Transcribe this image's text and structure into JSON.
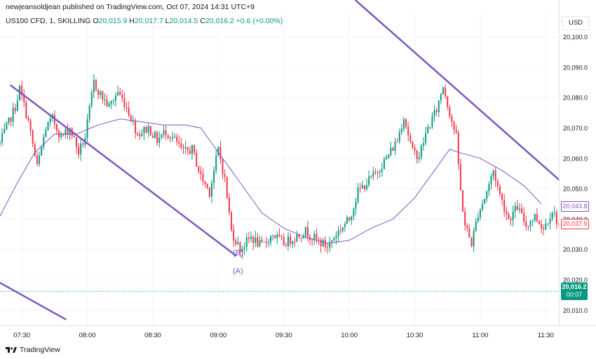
{
  "header": {
    "publisher": "newjeansoldjean published on TradingView.com, Oct 07, 2024 14:31 UTC+9",
    "symbol": "US100 CFD, 1, SKILLING",
    "ohlc": {
      "o_label": "O",
      "o": "20,015.9",
      "h_label": "H",
      "h": "20,017.7",
      "l_label": "L",
      "l": "20,014.5",
      "c_label": "C",
      "c": "20,016.2",
      "change": "+0.6 (+0.00%)"
    }
  },
  "currency": "USD",
  "footer": {
    "brand": "TradingView"
  },
  "price_tags": {
    "current_price": "20,016.2",
    "countdown": "00:07",
    "ma_value": "20,043.8",
    "last_close": "20,037.9"
  },
  "wave_labels": {
    "b": "(B)",
    "a": "(A)"
  },
  "colors": {
    "up": "#089981",
    "down": "#f23645",
    "ma": "#7e57c2",
    "trend": "#7e57c2",
    "current": "#089981",
    "grid": "#f0f3fa",
    "axis_text": "#131722"
  },
  "chart_data": {
    "type": "candlestick",
    "xlabel": "",
    "ylabel": "",
    "x_ticks": [
      "07:30",
      "08:00",
      "08:30",
      "09:00",
      "09:30",
      "10:00",
      "10:30",
      "11:00",
      "11:30"
    ],
    "y_ticks": [
      20010,
      20020,
      20030,
      20040,
      20050,
      20060,
      20070,
      20080,
      20090,
      20100
    ],
    "y_tick_labels": [
      "20,010.0",
      "20,020.0",
      "20,030.0",
      "20,040.0",
      "20,050.0",
      "20,060.0",
      "20,070.0",
      "20,080.0",
      "20,090.0",
      "20,100.0"
    ],
    "ylim": [
      20005,
      20108
    ],
    "xlim": [
      "07:20",
      "11:36"
    ],
    "grid": true,
    "price_path": [
      [
        "07:20",
        20065
      ],
      [
        "07:27",
        20077
      ],
      [
        "07:29",
        20083
      ],
      [
        "07:33",
        20072
      ],
      [
        "07:37",
        20057
      ],
      [
        "07:41",
        20070
      ],
      [
        "07:44",
        20073
      ],
      [
        "07:48",
        20067
      ],
      [
        "07:52",
        20070
      ],
      [
        "07:56",
        20062
      ],
      [
        "07:59",
        20067
      ],
      [
        "08:03",
        20085
      ],
      [
        "08:06",
        20081
      ],
      [
        "08:10",
        20077
      ],
      [
        "08:14",
        20082
      ],
      [
        "08:18",
        20077
      ],
      [
        "08:23",
        20068
      ],
      [
        "08:28",
        20070
      ],
      [
        "08:32",
        20066
      ],
      [
        "08:36",
        20069
      ],
      [
        "08:40",
        20066
      ],
      [
        "08:44",
        20062
      ],
      [
        "08:48",
        20063
      ],
      [
        "08:52",
        20054
      ],
      [
        "08:56",
        20049
      ],
      [
        "09:00",
        20063
      ],
      [
        "09:03",
        20053
      ],
      [
        "09:06",
        20036
      ],
      [
        "09:10",
        20030
      ],
      [
        "09:15",
        20034
      ],
      [
        "09:20",
        20031
      ],
      [
        "09:25",
        20035
      ],
      [
        "09:30",
        20032
      ],
      [
        "09:35",
        20034
      ],
      [
        "09:40",
        20036
      ],
      [
        "09:45",
        20033
      ],
      [
        "09:50",
        20031
      ],
      [
        "09:55",
        20036
      ],
      [
        "10:00",
        20040
      ],
      [
        "10:04",
        20049
      ],
      [
        "10:08",
        20052
      ],
      [
        "10:12",
        20055
      ],
      [
        "10:17",
        20060
      ],
      [
        "10:22",
        20066
      ],
      [
        "10:25",
        20074
      ],
      [
        "10:29",
        20062
      ],
      [
        "10:32",
        20061
      ],
      [
        "10:36",
        20070
      ],
      [
        "10:40",
        20076
      ],
      [
        "10:43",
        20084
      ],
      [
        "10:46",
        20075
      ],
      [
        "10:49",
        20067
      ],
      [
        "10:51",
        20049
      ],
      [
        "10:53",
        20038
      ],
      [
        "10:56",
        20032
      ],
      [
        "10:59",
        20042
      ],
      [
        "11:02",
        20047
      ],
      [
        "11:06",
        20056
      ],
      [
        "11:09",
        20048
      ],
      [
        "11:13",
        20040
      ],
      [
        "11:17",
        20044
      ],
      [
        "11:21",
        20038
      ],
      [
        "11:25",
        20041
      ],
      [
        "11:29",
        20037
      ],
      [
        "11:33",
        20043
      ],
      [
        "11:36",
        20038
      ]
    ],
    "moving_average": [
      [
        "07:20",
        20041
      ],
      [
        "07:28",
        20052
      ],
      [
        "07:36",
        20062
      ],
      [
        "07:45",
        20068
      ],
      [
        "07:55",
        20068
      ],
      [
        "08:05",
        20071
      ],
      [
        "08:15",
        20073
      ],
      [
        "08:25",
        20072
      ],
      [
        "08:35",
        20071
      ],
      [
        "08:45",
        20071
      ],
      [
        "08:52",
        20070
      ],
      [
        "09:00",
        20062
      ],
      [
        "09:10",
        20052
      ],
      [
        "09:20",
        20042
      ],
      [
        "09:30",
        20037
      ],
      [
        "09:40",
        20034
      ],
      [
        "09:50",
        20032
      ],
      [
        "10:00",
        20033
      ],
      [
        "10:10",
        20037
      ],
      [
        "10:20",
        20040
      ],
      [
        "10:30",
        20047
      ],
      [
        "10:40",
        20057
      ],
      [
        "10:46",
        20063
      ],
      [
        "10:50",
        20062
      ],
      [
        "11:00",
        20060
      ],
      [
        "11:10",
        20056
      ],
      [
        "11:20",
        20051
      ],
      [
        "11:28",
        20045
      ]
    ],
    "trend_lines": [
      {
        "from": [
          "07:25",
          20084
        ],
        "to": [
          "09:08",
          20028
        ]
      },
      {
        "from": [
          "07:20",
          20019
        ],
        "to": [
          "07:50",
          20007
        ]
      },
      {
        "from": [
          "10:03",
          20112
        ],
        "to": [
          "11:36",
          20053
        ]
      }
    ],
    "annotations": [
      {
        "text": "(B)",
        "at": [
          "09:09",
          20029
        ]
      },
      {
        "text": "(A)",
        "at": [
          "09:09",
          20023
        ]
      }
    ],
    "current_price_line": 20016.2
  }
}
